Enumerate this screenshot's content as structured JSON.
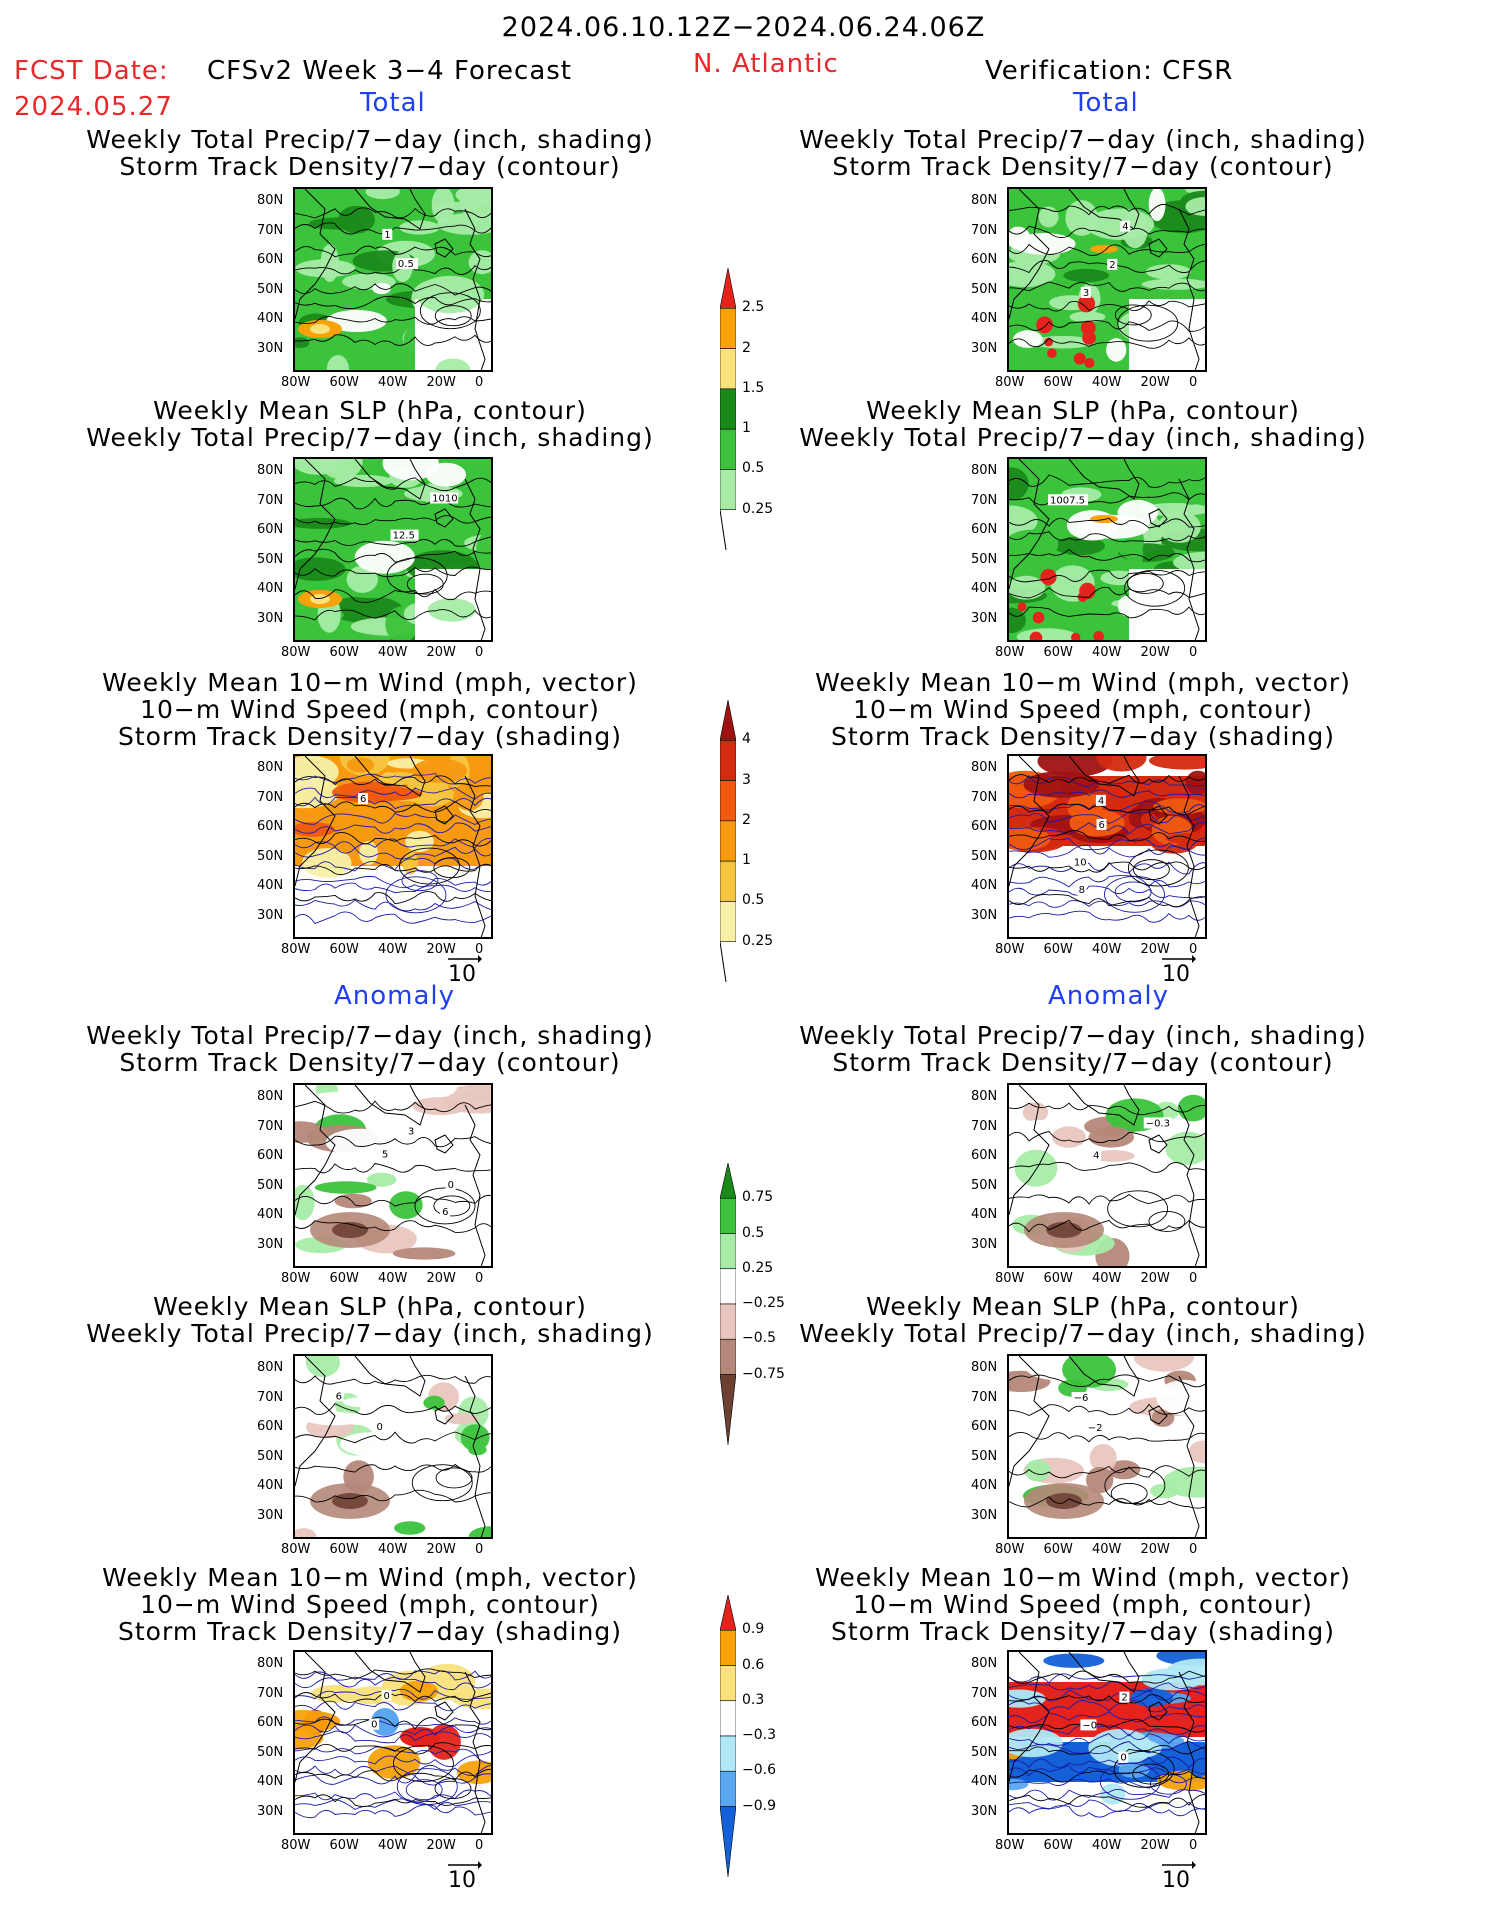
{
  "header": {
    "period": "2024.06.10.12Z−2024.06.24.06Z",
    "fcst_label": "FCST Date:",
    "fcst_date": "2024.05.27",
    "model": "CFSv2 Week 3−4 Forecast",
    "region": "N. Atlantic",
    "verification": "Verification: CFSR"
  },
  "sections": {
    "total": "Total",
    "anomaly": "Anomaly"
  },
  "titles": {
    "precip_track": "Weekly Total Precip/7−day (inch, shading)\nStorm Track Density/7−day (contour)",
    "slp_precip": "Weekly Mean SLP (hPa, contour)\nWeekly Total Precip/7−day (inch, shading)",
    "wind_track": "Weekly Mean 10−m Wind (mph, vector)\n10−m Wind Speed (mph, contour)\nStorm Track Density/7−day (shading)"
  },
  "axes": {
    "lat": [
      "80N",
      "70N",
      "60N",
      "50N",
      "40N",
      "30N"
    ],
    "lon": [
      "80W",
      "60W",
      "40W",
      "20W",
      "0"
    ]
  },
  "vector_ref": "10",
  "colorbars": {
    "precip_total": {
      "labels": [
        "2.5",
        "2",
        "1.5",
        "1",
        "0.5",
        "0.25"
      ],
      "colors": [
        "#e3231c",
        "#f7a20a",
        "#f9e27c",
        "#1a8a1a",
        "#3cc33c",
        "#a6eca6"
      ]
    },
    "track_total": {
      "labels": [
        "4",
        "3",
        "2",
        "1",
        "0.5",
        "0.25"
      ],
      "colors": [
        "#a01212",
        "#d42a10",
        "#f05a0f",
        "#f79a10",
        "#f5c542",
        "#f8f0a8"
      ]
    },
    "precip_anom": {
      "labels": [
        "0.75",
        "0.5",
        "0.25",
        "−0.25",
        "−0.5",
        "−0.75"
      ],
      "colors": [
        "#1a8a1a",
        "#3cc33c",
        "#a6eca6",
        "#ffffff",
        "#e8c6bf",
        "#b58879",
        "#6e4034"
      ]
    },
    "track_anom": {
      "labels": [
        "0.9",
        "0.6",
        "0.3",
        "−0.3",
        "−0.6",
        "−0.9"
      ],
      "colors": [
        "#e3231c",
        "#f7a20a",
        "#f9e27c",
        "#ffffff",
        "#b0e8f5",
        "#5aa6f0",
        "#1460d8"
      ]
    }
  },
  "map_annotations": {
    "p1": [
      "1",
      "0.5"
    ],
    "p2": [
      "4",
      "2",
      "3"
    ],
    "p3": [
      "1010",
      "12.5"
    ],
    "p4": [
      "1007.5"
    ],
    "p5": [
      "6"
    ],
    "p6": [
      "4",
      "6",
      "10",
      "8"
    ],
    "p7": [
      "3",
      "5",
      "0",
      "6"
    ],
    "p8": [
      "−0.3",
      "4"
    ],
    "p9": [
      "6",
      "0"
    ],
    "p10": [
      "−6",
      "−2"
    ],
    "p11": [
      "0",
      "0"
    ],
    "p12": [
      "2",
      "−0",
      "0"
    ]
  }
}
